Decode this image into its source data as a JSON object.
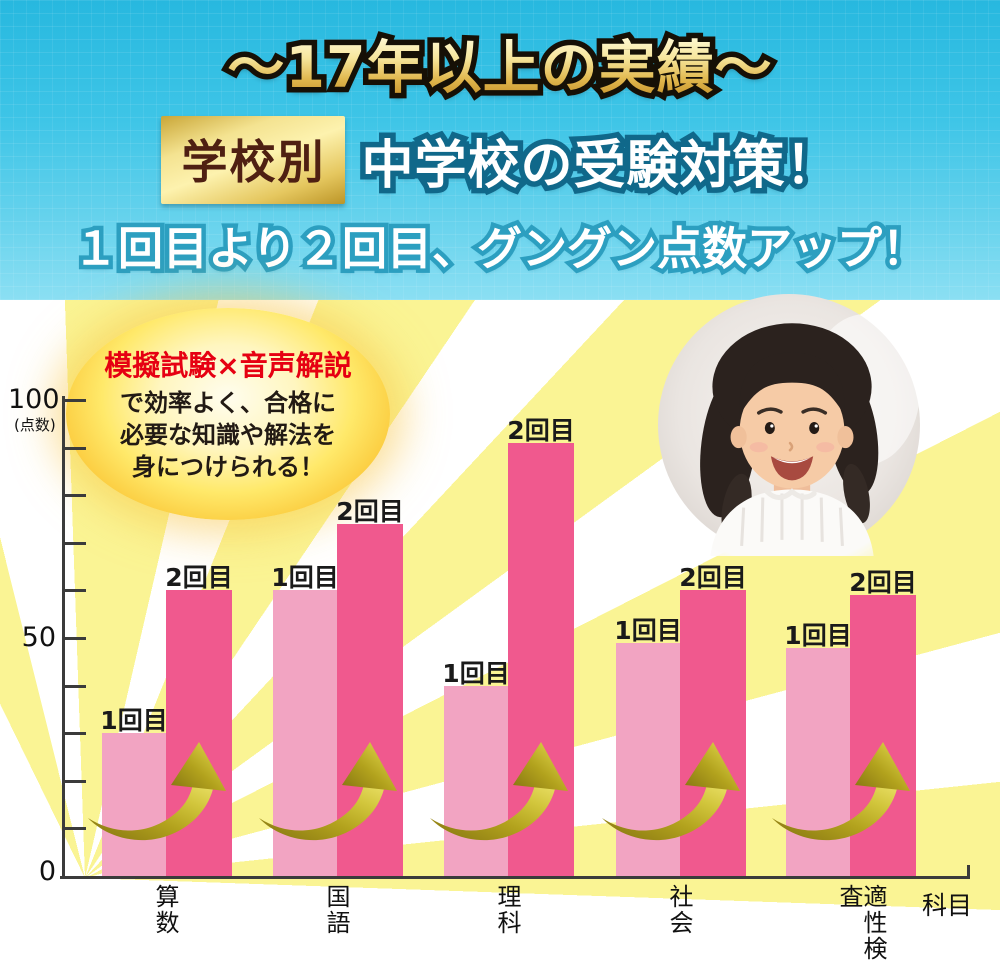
{
  "header": {
    "title": "〜17年以上の実績〜",
    "badge": "学校別",
    "subtitle": "中学校の受験対策！",
    "tagline": "１回目より２回目、グングン点数アップ！"
  },
  "callout": {
    "line1": "模擬試験×音声解説",
    "line2": "で効率よく、合格に",
    "line3": "必要な知識や解法を",
    "line4": "身につけられる！"
  },
  "chart_data": {
    "type": "bar",
    "title": "",
    "categories": [
      "算数",
      "国語",
      "理科",
      "社会",
      "適性検査"
    ],
    "series": [
      {
        "name": "1回目",
        "values": [
          30,
          60,
          40,
          49,
          48
        ],
        "color": "#F2A4C2"
      },
      {
        "name": "2回目",
        "values": [
          60,
          74,
          91,
          60,
          59
        ],
        "color": "#F0598E"
      }
    ],
    "ylim": [
      0,
      100
    ],
    "yticks": [
      0,
      50,
      100
    ],
    "minor_tick_step": 10,
    "y_unit_label": "(点数)",
    "xlabel": "科目",
    "grid": false,
    "legend": "none — bars labeled directly above each column",
    "annotations": "gold upward swoosh arrow from each 1回目 bar to its 2回目 bar"
  },
  "icons": {
    "arrow": "gold-up-swoosh-arrow",
    "photo": "smiling-girl-photo"
  },
  "colors": {
    "header_cyan": "#3EC5E7",
    "title_gold": "#E0B64C",
    "title_outline": "#161006",
    "badge_gold": "#E5C75F",
    "badge_text": "#4F2012",
    "heading_outline": "#10688A",
    "tagline_outline": "#2C9FC0",
    "ray_yellow": "#FAF494",
    "bar_first": "#F2A4C2",
    "bar_second": "#F0598E",
    "balloon_yellow": "#FFE96A",
    "balloon_red": "#E60012",
    "arrow_gold": "#BFAE2A",
    "axis": "#3B3B3B"
  }
}
